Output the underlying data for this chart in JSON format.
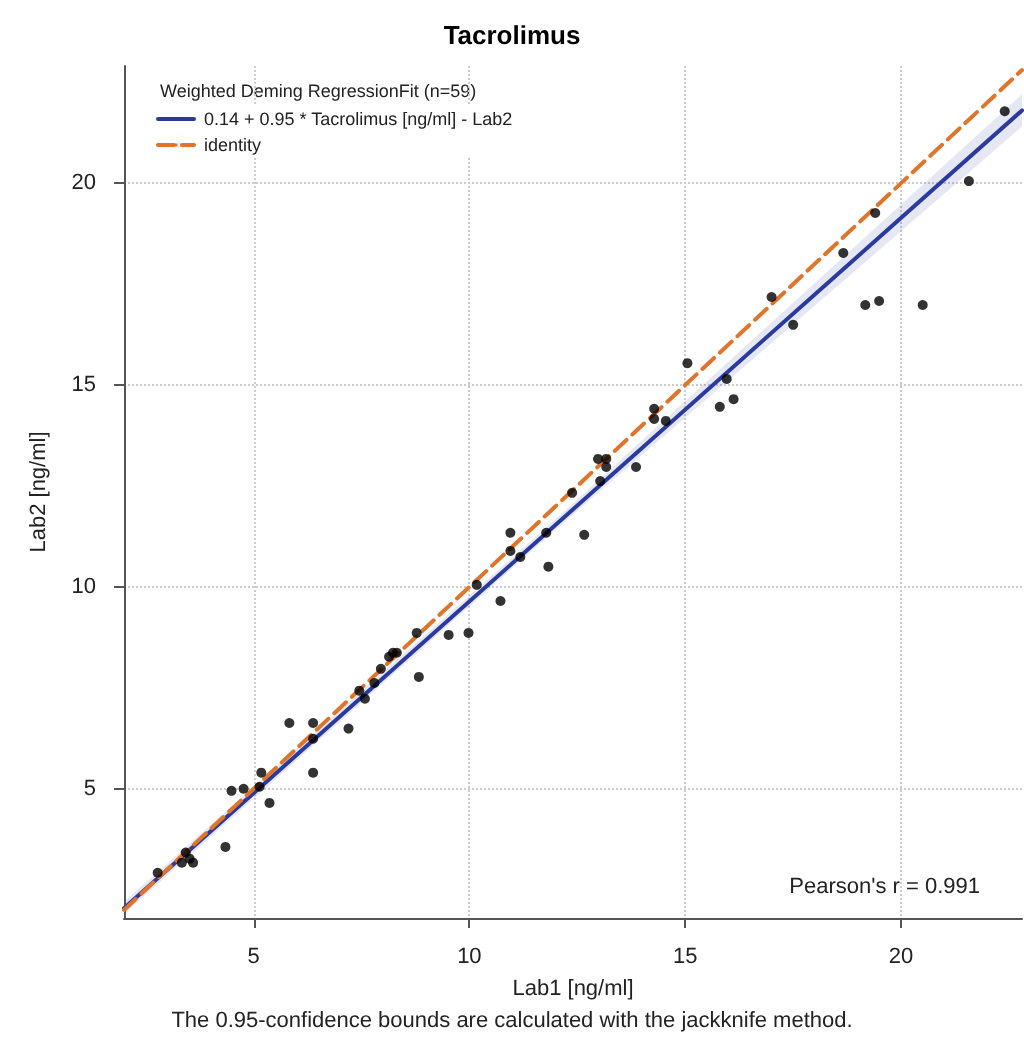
{
  "chart_data": {
    "type": "scatter",
    "title": "Tacrolimus",
    "xlabel": "Lab1 [ng/ml]",
    "ylabel": "Lab2 [ng/ml]",
    "legend_title": "Weighted Deming RegressionFit (n=59)",
    "annotations": [
      "Pearson's r = 0.991",
      "The 0.95-confidence bounds are calculated with the jackknife method."
    ],
    "xlim": [
      2,
      22.8
    ],
    "ylim": [
      1.8,
      22.9
    ],
    "xticks": [
      5,
      10,
      15,
      20
    ],
    "yticks": [
      5,
      10,
      15,
      20
    ],
    "grid": true,
    "legend": "top left",
    "series": [
      {
        "color": "#000000",
        "marker": "circle",
        "x": [
          2.78,
          3.34,
          3.43,
          3.52,
          3.6,
          4.35,
          4.49,
          4.77,
          5.14,
          5.18,
          5.37,
          5.83,
          6.38,
          6.38,
          6.38,
          7.2,
          7.45,
          7.58,
          7.8,
          7.95,
          8.14,
          8.23,
          8.32,
          8.78,
          8.83,
          9.52,
          9.98,
          10.17,
          10.72,
          10.95,
          10.95,
          11.18,
          11.78,
          11.83,
          12.66,
          12.38,
          13.03,
          12.98,
          13.17,
          13.17,
          13.86,
          14.28,
          14.28,
          14.55,
          15.05,
          15.8,
          15.96,
          16.12,
          17.0,
          17.5,
          18.66,
          19.4,
          19.17,
          19.49,
          20.5,
          21.57,
          22.4
        ],
        "values": [
          2.92,
          3.17,
          3.42,
          3.27,
          3.17,
          3.56,
          4.95,
          5.0,
          5.05,
          5.4,
          4.65,
          6.63,
          6.63,
          6.24,
          5.4,
          6.49,
          7.43,
          7.23,
          7.62,
          7.97,
          8.27,
          8.37,
          8.37,
          8.86,
          7.77,
          8.81,
          8.86,
          10.05,
          9.65,
          11.34,
          10.89,
          10.74,
          11.34,
          10.5,
          11.29,
          12.33,
          12.62,
          13.17,
          13.17,
          12.97,
          12.97,
          14.41,
          14.16,
          14.11,
          15.54,
          14.46,
          15.15,
          14.65,
          17.18,
          16.49,
          18.27,
          19.26,
          16.98,
          17.08,
          16.98,
          20.05,
          21.78
        ]
      },
      {
        "type": "line",
        "name": "0.14 + 0.95 * Tacrolimus [ng/ml] - Lab2",
        "color": "#2b3a9e",
        "line_style": "solid",
        "marker": "none",
        "x": [
          2,
          12,
          22.8
        ],
        "values": [
          2.04,
          11.54,
          21.8
        ],
        "lower": [
          1.9,
          11.42,
          21.4
        ],
        "upper": [
          2.2,
          11.68,
          22.2
        ]
      },
      {
        "type": "line",
        "name": "identity",
        "color": "#e0742a",
        "line_style": "dashed",
        "marker": "none",
        "x": [
          2,
          22.8
        ],
        "values": [
          2,
          22.8
        ]
      }
    ]
  }
}
